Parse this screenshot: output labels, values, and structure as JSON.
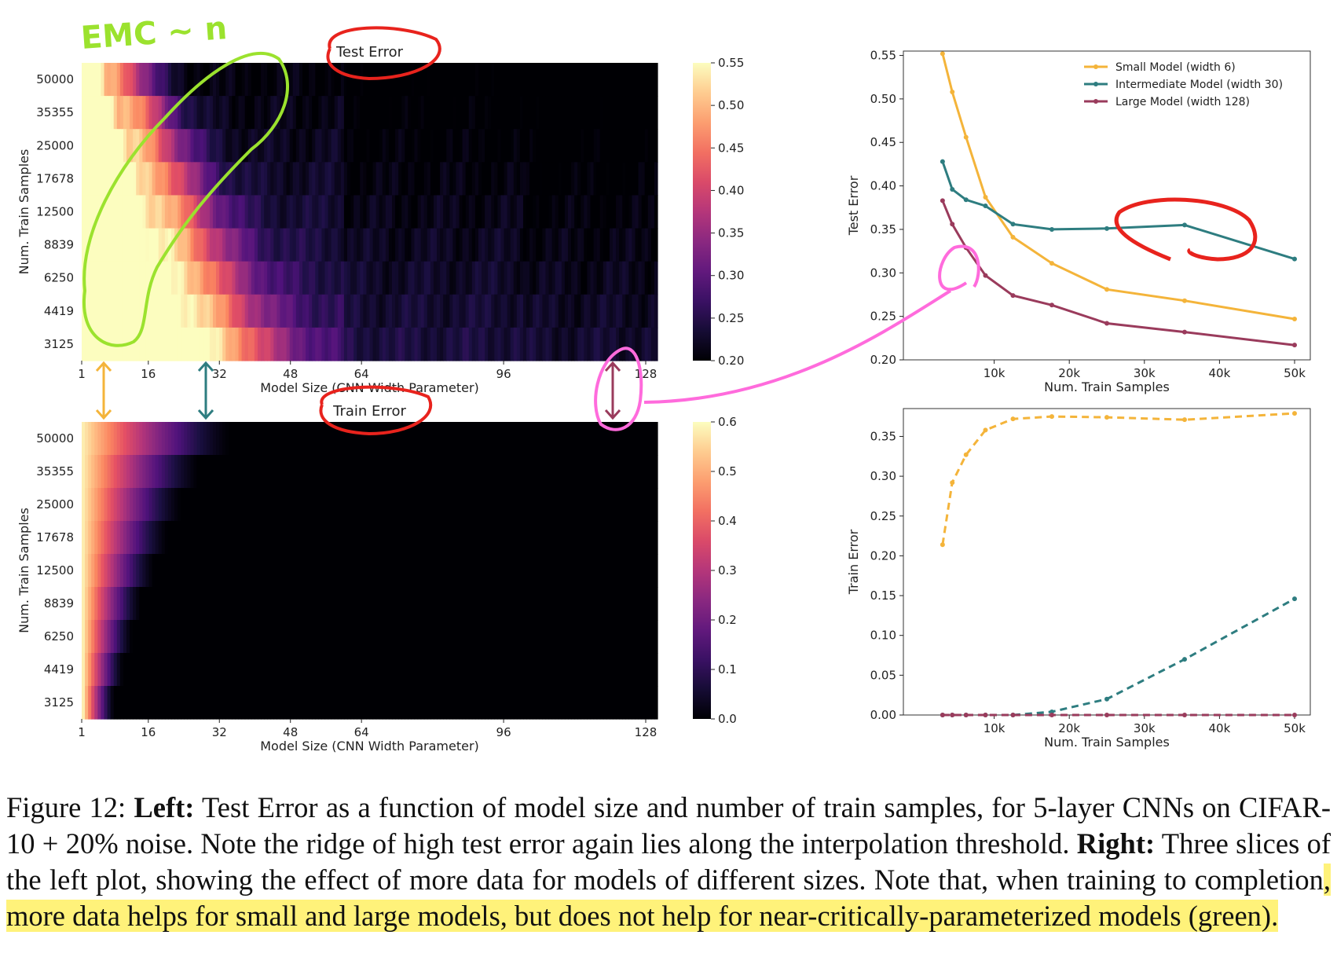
{
  "annotation_text": "EMC ~ n",
  "chart_data": [
    {
      "type": "heatmap",
      "title": "Test Error",
      "xlabel": "Model Size (CNN Width Parameter)",
      "ylabel": "Num. Train Samples",
      "xticks": [
        1,
        16,
        32,
        48,
        64,
        96,
        128
      ],
      "xlim": [
        1,
        128
      ],
      "rows": [
        "50000",
        "35355",
        "25000",
        "17678",
        "12500",
        "8839",
        "6250",
        "4419",
        "3125"
      ],
      "colorbar_ticks": [
        "0.55",
        "0.50",
        "0.45",
        "0.40",
        "0.35",
        "0.30",
        "0.25",
        "0.20"
      ],
      "colorbar_range": [
        0.2,
        0.55
      ],
      "ridge_width_by_row": [
        6,
        9,
        11,
        13,
        15,
        17,
        19,
        21,
        24
      ],
      "colormap": "magma"
    },
    {
      "type": "heatmap",
      "title": "Train Error",
      "xlabel": "Model Size (CNN Width Parameter)",
      "ylabel": "Num. Train Samples",
      "xticks": [
        1,
        16,
        32,
        48,
        64,
        96,
        128
      ],
      "xlim": [
        1,
        128
      ],
      "rows": [
        "50000",
        "35355",
        "25000",
        "17678",
        "12500",
        "8839",
        "6250",
        "4419",
        "3125"
      ],
      "colorbar_ticks": [
        "0.6",
        "0.5",
        "0.4",
        "0.3",
        "0.2",
        "0.1",
        "0.0"
      ],
      "colorbar_range": [
        0,
        0.6
      ],
      "interpolation_width_by_row": [
        34,
        27,
        23,
        20,
        17,
        14,
        12,
        10,
        8
      ],
      "colormap": "magma"
    },
    {
      "type": "line",
      "xlabel": "Num. Train Samples",
      "ylabel": "Test Error",
      "xlim": [
        0,
        50000
      ],
      "ylim": [
        0.2,
        0.555
      ],
      "xticks": [
        {
          "v": 10000,
          "label": "10k"
        },
        {
          "v": 20000,
          "label": "20k"
        },
        {
          "v": 30000,
          "label": "30k"
        },
        {
          "v": 40000,
          "label": "40k"
        },
        {
          "v": 50000,
          "label": "50k"
        }
      ],
      "yticks": [
        "0.20",
        "0.25",
        "0.30",
        "0.35",
        "0.40",
        "0.45",
        "0.50",
        "0.55"
      ],
      "legend_position": "top-right",
      "x": [
        3125,
        4419,
        6250,
        8839,
        12500,
        17678,
        25000,
        35355,
        50000
      ],
      "series": [
        {
          "name": "Small Model (width 6)",
          "color": "#f4b43a",
          "values": [
            0.552,
            0.508,
            0.456,
            0.387,
            0.341,
            0.311,
            0.281,
            0.268,
            0.247
          ]
        },
        {
          "name": "Intermediate Model (width 30)",
          "color": "#2e7d80",
          "values": [
            0.428,
            0.396,
            0.384,
            0.377,
            0.356,
            0.35,
            0.351,
            0.355,
            0.316
          ]
        },
        {
          "name": "Large Model (width 128)",
          "color": "#9a3b5c",
          "values": [
            0.383,
            0.356,
            0.329,
            0.297,
            0.274,
            0.263,
            0.242,
            0.232,
            0.217
          ]
        }
      ]
    },
    {
      "type": "line",
      "xlabel": "Num. Train Samples",
      "ylabel": "Train Error",
      "xlim": [
        0,
        50000
      ],
      "ylim": [
        0,
        0.385
      ],
      "xticks": [
        {
          "v": 10000,
          "label": "10k"
        },
        {
          "v": 20000,
          "label": "20k"
        },
        {
          "v": 30000,
          "label": "30k"
        },
        {
          "v": 40000,
          "label": "40k"
        },
        {
          "v": 50000,
          "label": "50k"
        }
      ],
      "yticks": [
        "0.00",
        "0.05",
        "0.10",
        "0.15",
        "0.20",
        "0.25",
        "0.30",
        "0.35"
      ],
      "line_style": "dashed",
      "x": [
        3125,
        4419,
        6250,
        8839,
        12500,
        17678,
        25000,
        35355,
        50000
      ],
      "series": [
        {
          "color": "#f4b43a",
          "values": [
            0.214,
            0.292,
            0.327,
            0.358,
            0.372,
            0.375,
            0.374,
            0.371,
            0.379
          ]
        },
        {
          "color": "#2e7d80",
          "values": [
            0.0,
            0.0,
            0.0,
            0.0,
            0.0,
            0.004,
            0.02,
            0.07,
            0.146
          ]
        },
        {
          "color": "#9a3b5c",
          "values": [
            0.0,
            0.0,
            0.0,
            0.0,
            0.0,
            0.0,
            0.0,
            0.0,
            0.0
          ]
        }
      ]
    }
  ],
  "caption": {
    "prefix": "Figure 12: ",
    "left_label": "Left:",
    "left_text": " Test Error as a function of model size and number of train samples, for 5-layer CNNs on CIFAR-10 + 20% noise. Note the ridge of high test error again lies along the interpolation threshold. ",
    "right_label": "Right:",
    "right_text": "  Three slices of the left plot, showing the effect of more data for models of different sizes. Note that, when training to completion",
    "highlight_text": ", more data helps for small and large models, but does not help for near-critically-parameterized models (green)."
  }
}
